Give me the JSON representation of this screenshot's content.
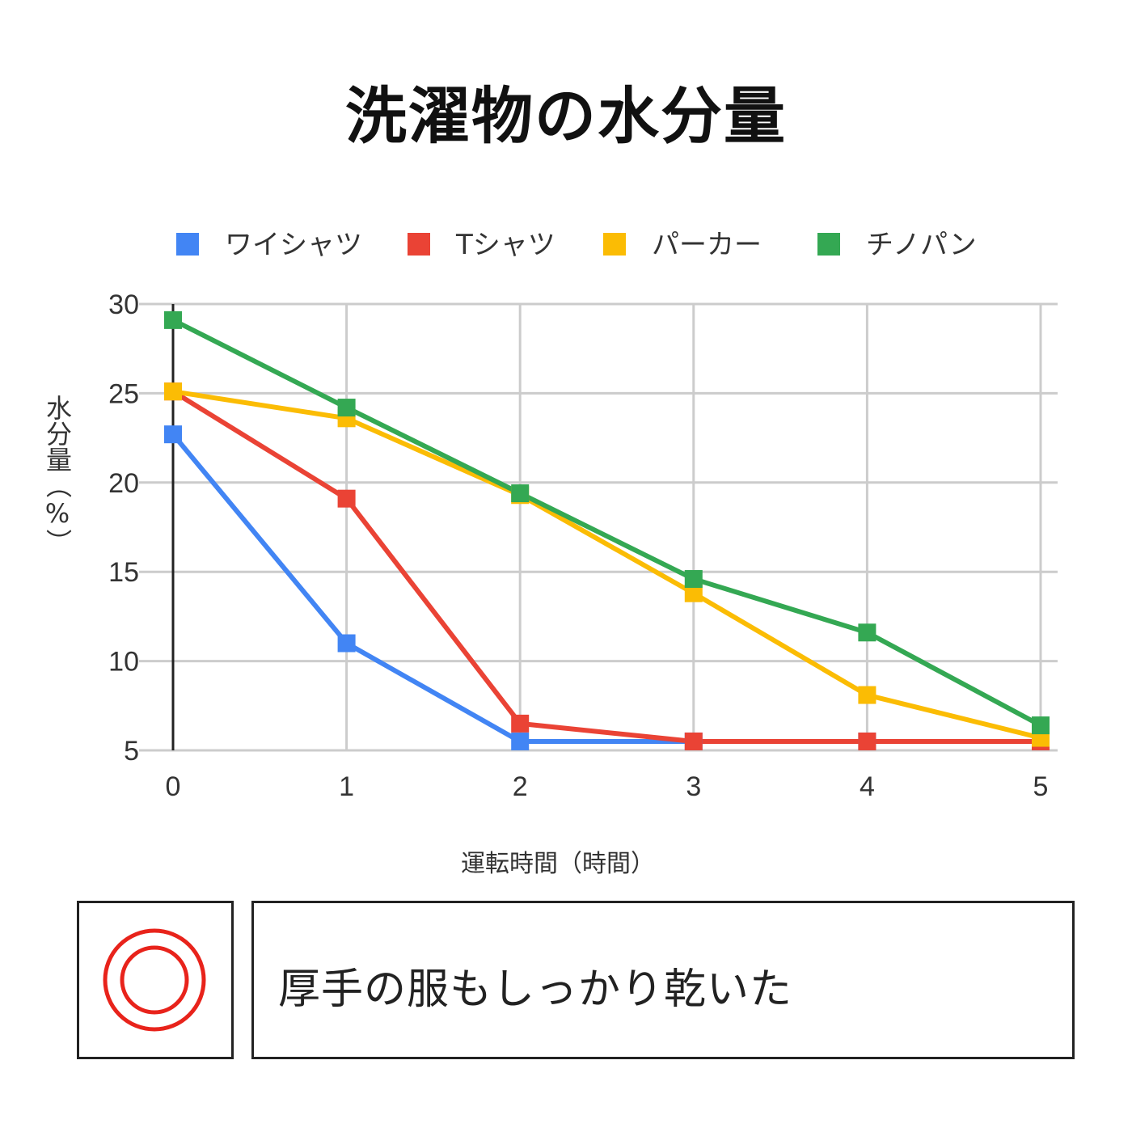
{
  "title": "洗濯物の水分量",
  "chart_data": {
    "type": "line",
    "title": "洗濯物の水分量",
    "xlabel": "運転時間（時間）",
    "ylabel": "水分量（%）",
    "x": [
      0,
      1,
      2,
      3,
      4,
      5
    ],
    "x_ticks": [
      "0",
      "1",
      "2",
      "3",
      "4",
      "5"
    ],
    "y_ticks": [
      "30",
      "25",
      "20",
      "15",
      "10",
      "5"
    ],
    "ylim": [
      5,
      30
    ],
    "grid": true,
    "legend_position": "top",
    "marker": "square",
    "series": [
      {
        "name": "ワイシャツ",
        "color": "#4285f4",
        "values": [
          22.7,
          11.0,
          5.5,
          5.5,
          5.5,
          5.5
        ]
      },
      {
        "name": "Tシャツ",
        "color": "#ea4335",
        "values": [
          25.1,
          19.1,
          6.5,
          5.5,
          5.5,
          5.5
        ]
      },
      {
        "name": "パーカー",
        "color": "#fbbc04",
        "values": [
          25.1,
          23.6,
          19.3,
          13.8,
          8.1,
          5.7
        ]
      },
      {
        "name": "チノパン",
        "color": "#34a853",
        "values": [
          29.1,
          24.2,
          19.4,
          14.6,
          11.6,
          6.4
        ]
      }
    ]
  },
  "rating": {
    "symbol_name": "double-circle-icon",
    "color": "#e8231b"
  },
  "comment": "厚手の服もしっかり乾いた"
}
